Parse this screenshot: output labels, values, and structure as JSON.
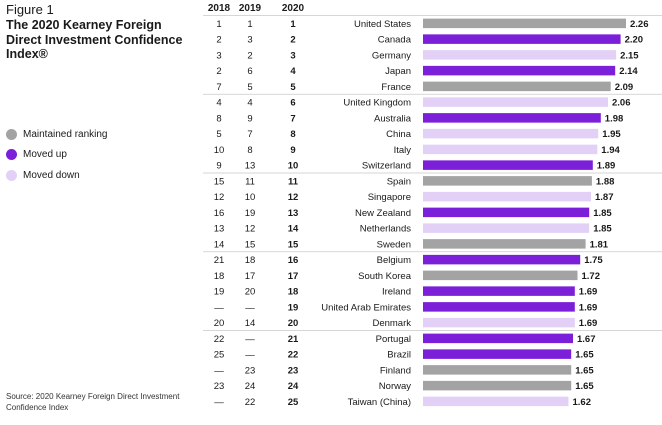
{
  "figure_label": "Figure 1",
  "title": "The 2020 Kearney Foreign Direct Investment Confidence Index®",
  "legend": [
    {
      "label": "Maintained ranking",
      "color": "#a3a3a3"
    },
    {
      "label": "Moved up",
      "color": "#7b1fd9"
    },
    {
      "label": "Moved down",
      "color": "#e3d0f7"
    }
  ],
  "source": "Source: 2020 Kearney Foreign Direct Investment Confidence Index",
  "columns": [
    "2018",
    "2019",
    "2020"
  ],
  "chart_data": {
    "type": "bar",
    "orientation": "horizontal",
    "categories": [
      "United States",
      "Canada",
      "Germany",
      "Japan",
      "France",
      "United Kingdom",
      "Australia",
      "China",
      "Italy",
      "Switzerland",
      "Spain",
      "Singapore",
      "New Zealand",
      "Netherlands",
      "Sweden",
      "Belgium",
      "South Korea",
      "Ireland",
      "United Arab Emirates",
      "Denmark",
      "Portugal",
      "Brazil",
      "Finland",
      "Norway",
      "Taiwan (China)"
    ],
    "values": [
      2.26,
      2.2,
      2.15,
      2.14,
      2.09,
      2.06,
      1.98,
      1.95,
      1.94,
      1.89,
      1.88,
      1.87,
      1.85,
      1.85,
      1.81,
      1.75,
      1.72,
      1.69,
      1.69,
      1.69,
      1.67,
      1.65,
      1.65,
      1.65,
      1.62
    ],
    "value_labels": [
      "2.26",
      "2.20",
      "2.15",
      "2.14",
      "2.09",
      "2.06",
      "1.98",
      "1.95",
      "1.94",
      "1.89",
      "1.88",
      "1.87",
      "1.85",
      "1.85",
      "1.81",
      "1.75",
      "1.72",
      "1.69",
      "1.69",
      "1.69",
      "1.67",
      "1.65",
      "1.65",
      "1.65",
      "1.62"
    ],
    "rank_2018": [
      "1",
      "2",
      "3",
      "2",
      "7",
      "4",
      "8",
      "5",
      "10",
      "9",
      "15",
      "12",
      "16",
      "13",
      "14",
      "21",
      "18",
      "19",
      "—",
      "20",
      "22",
      "25",
      "—",
      "23",
      "—"
    ],
    "rank_2019": [
      "1",
      "3",
      "2",
      "6",
      "5",
      "4",
      "9",
      "7",
      "8",
      "13",
      "11",
      "10",
      "19",
      "12",
      "15",
      "18",
      "17",
      "20",
      "—",
      "14",
      "—",
      "—",
      "23",
      "24",
      "22"
    ],
    "rank_2020": [
      "1",
      "2",
      "3",
      "4",
      "5",
      "6",
      "7",
      "8",
      "9",
      "10",
      "11",
      "12",
      "13",
      "14",
      "15",
      "16",
      "17",
      "18",
      "19",
      "20",
      "21",
      "22",
      "23",
      "24",
      "25"
    ],
    "status": [
      "maintained",
      "up",
      "down",
      "up",
      "maintained",
      "down",
      "up",
      "down",
      "down",
      "up",
      "maintained",
      "down",
      "up",
      "down",
      "maintained",
      "up",
      "maintained",
      "up",
      "up",
      "down",
      "up",
      "up",
      "maintained",
      "maintained",
      "down"
    ],
    "colors": {
      "maintained": "#a3a3a3",
      "up": "#7b1fd9",
      "down": "#e3d0f7"
    },
    "xlim": [
      0,
      2.26
    ],
    "grid": false
  }
}
